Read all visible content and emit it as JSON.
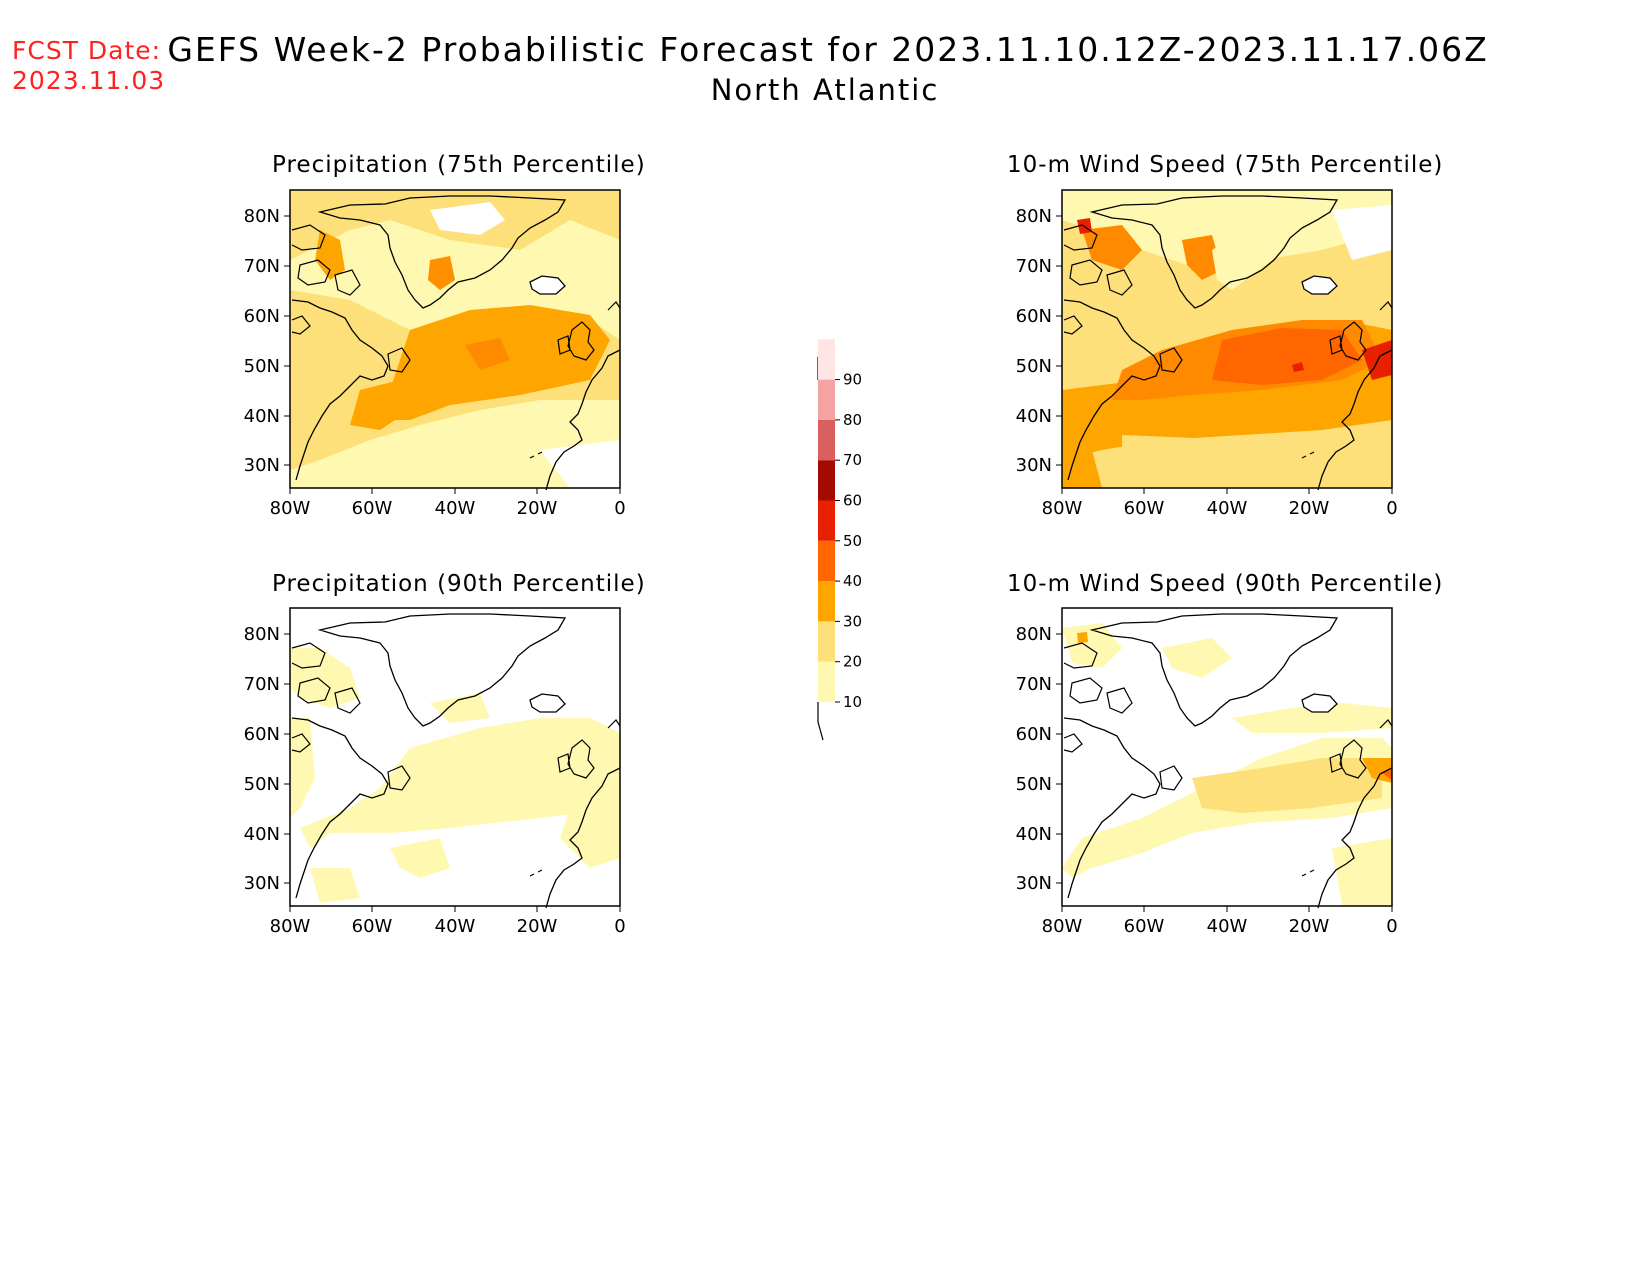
{
  "header": {
    "fcst_label": "FCST Date:",
    "fcst_date": "2023.11.03",
    "title": "GEFS Week-2 Probabilistic Forecast for 2023.11.10.12Z-2023.11.17.06Z",
    "subtitle": "North Atlantic"
  },
  "panels": [
    {
      "title": "Precipitation (75th Percentile)"
    },
    {
      "title": "10-m Wind Speed (75th Percentile)"
    },
    {
      "title": "Precipitation (90th Percentile)"
    },
    {
      "title": "10-m Wind Speed (90th Percentile)"
    }
  ],
  "axes": {
    "lat_ticks": [
      "80N",
      "70N",
      "60N",
      "50N",
      "40N",
      "30N"
    ],
    "lon_ticks": [
      "80W",
      "60W",
      "40W",
      "20W",
      "0"
    ]
  },
  "colorbar": {
    "levels": [
      "10",
      "20",
      "30",
      "40",
      "50",
      "60",
      "70",
      "80",
      "90"
    ],
    "colors": [
      "#fff8b0",
      "#fde07a",
      "#ffa500",
      "#ff6600",
      "#e82000",
      "#a50a00",
      "#d9605c",
      "#f4a2a2",
      "#ffe4e4"
    ]
  }
}
